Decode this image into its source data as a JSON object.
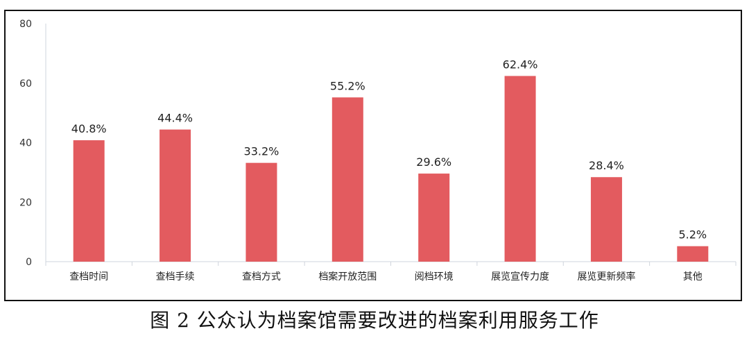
{
  "colors": {
    "bar": "#E35B5F",
    "axis": "#cfd4dc",
    "text": "#222222"
  },
  "chart_data": {
    "type": "bar",
    "categories": [
      "查档时间",
      "查档手续",
      "查档方式",
      "档案开放范围",
      "阅档环境",
      "展览宣传力度",
      "展览更新频率",
      "其他"
    ],
    "values": [
      40.8,
      44.4,
      33.2,
      55.2,
      29.6,
      62.4,
      28.4,
      5.2
    ],
    "data_labels": [
      "40.8%",
      "44.4%",
      "33.2%",
      "55.2%",
      "29.6%",
      "62.4%",
      "28.4%",
      "5.2%"
    ],
    "ylim": [
      0,
      80
    ],
    "yticks": [
      0,
      20,
      40,
      60,
      80
    ],
    "grid": false,
    "caption": "图 2 公众认为档案馆需要改进的档案利用服务工作"
  }
}
